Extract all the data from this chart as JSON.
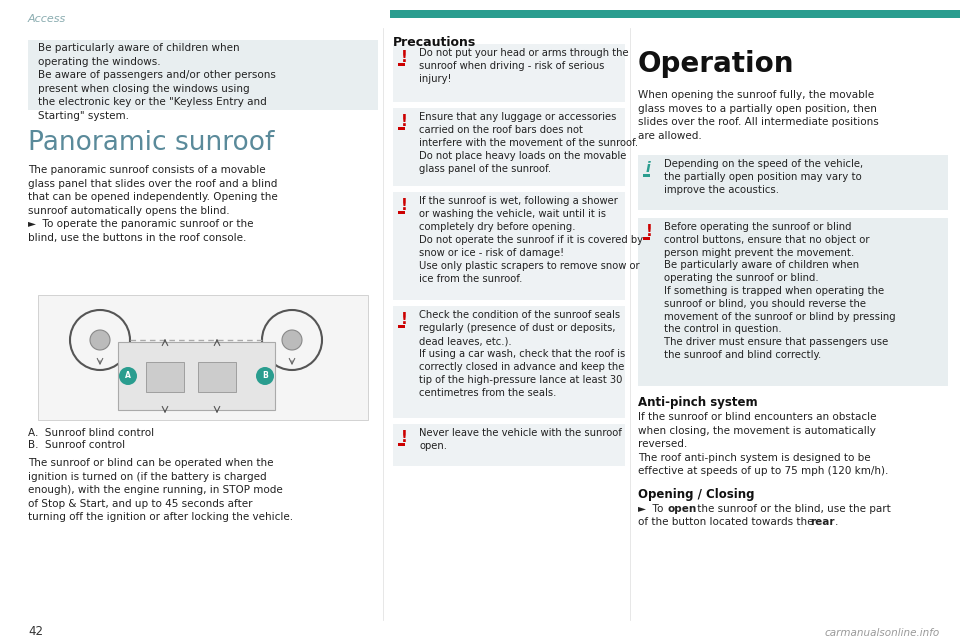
{
  "bg_color": "#ffffff",
  "header_text": "Access",
  "header_color": "#8aacb0",
  "teal_bar_color": "#2a9d8f",
  "page_number": "42",
  "watermark": "carmanualsonline.info",
  "gray_box_color": "#e8eef0",
  "red_exclaim_color": "#cc0000",
  "teal_i_color": "#2a9d8f",
  "section1_title": "Panoramic sunroof",
  "section1_title_color": "#5a8a9a",
  "precautions_title": "Precautions",
  "op_title": "Operation",
  "antipinch_title": "Anti-pinch system",
  "opening_title": "Opening / Closing",
  "label_a": "A.",
  "label_a2": "  Sunroof blind control",
  "label_b": "B.",
  "label_b2": "  Sunroof control"
}
